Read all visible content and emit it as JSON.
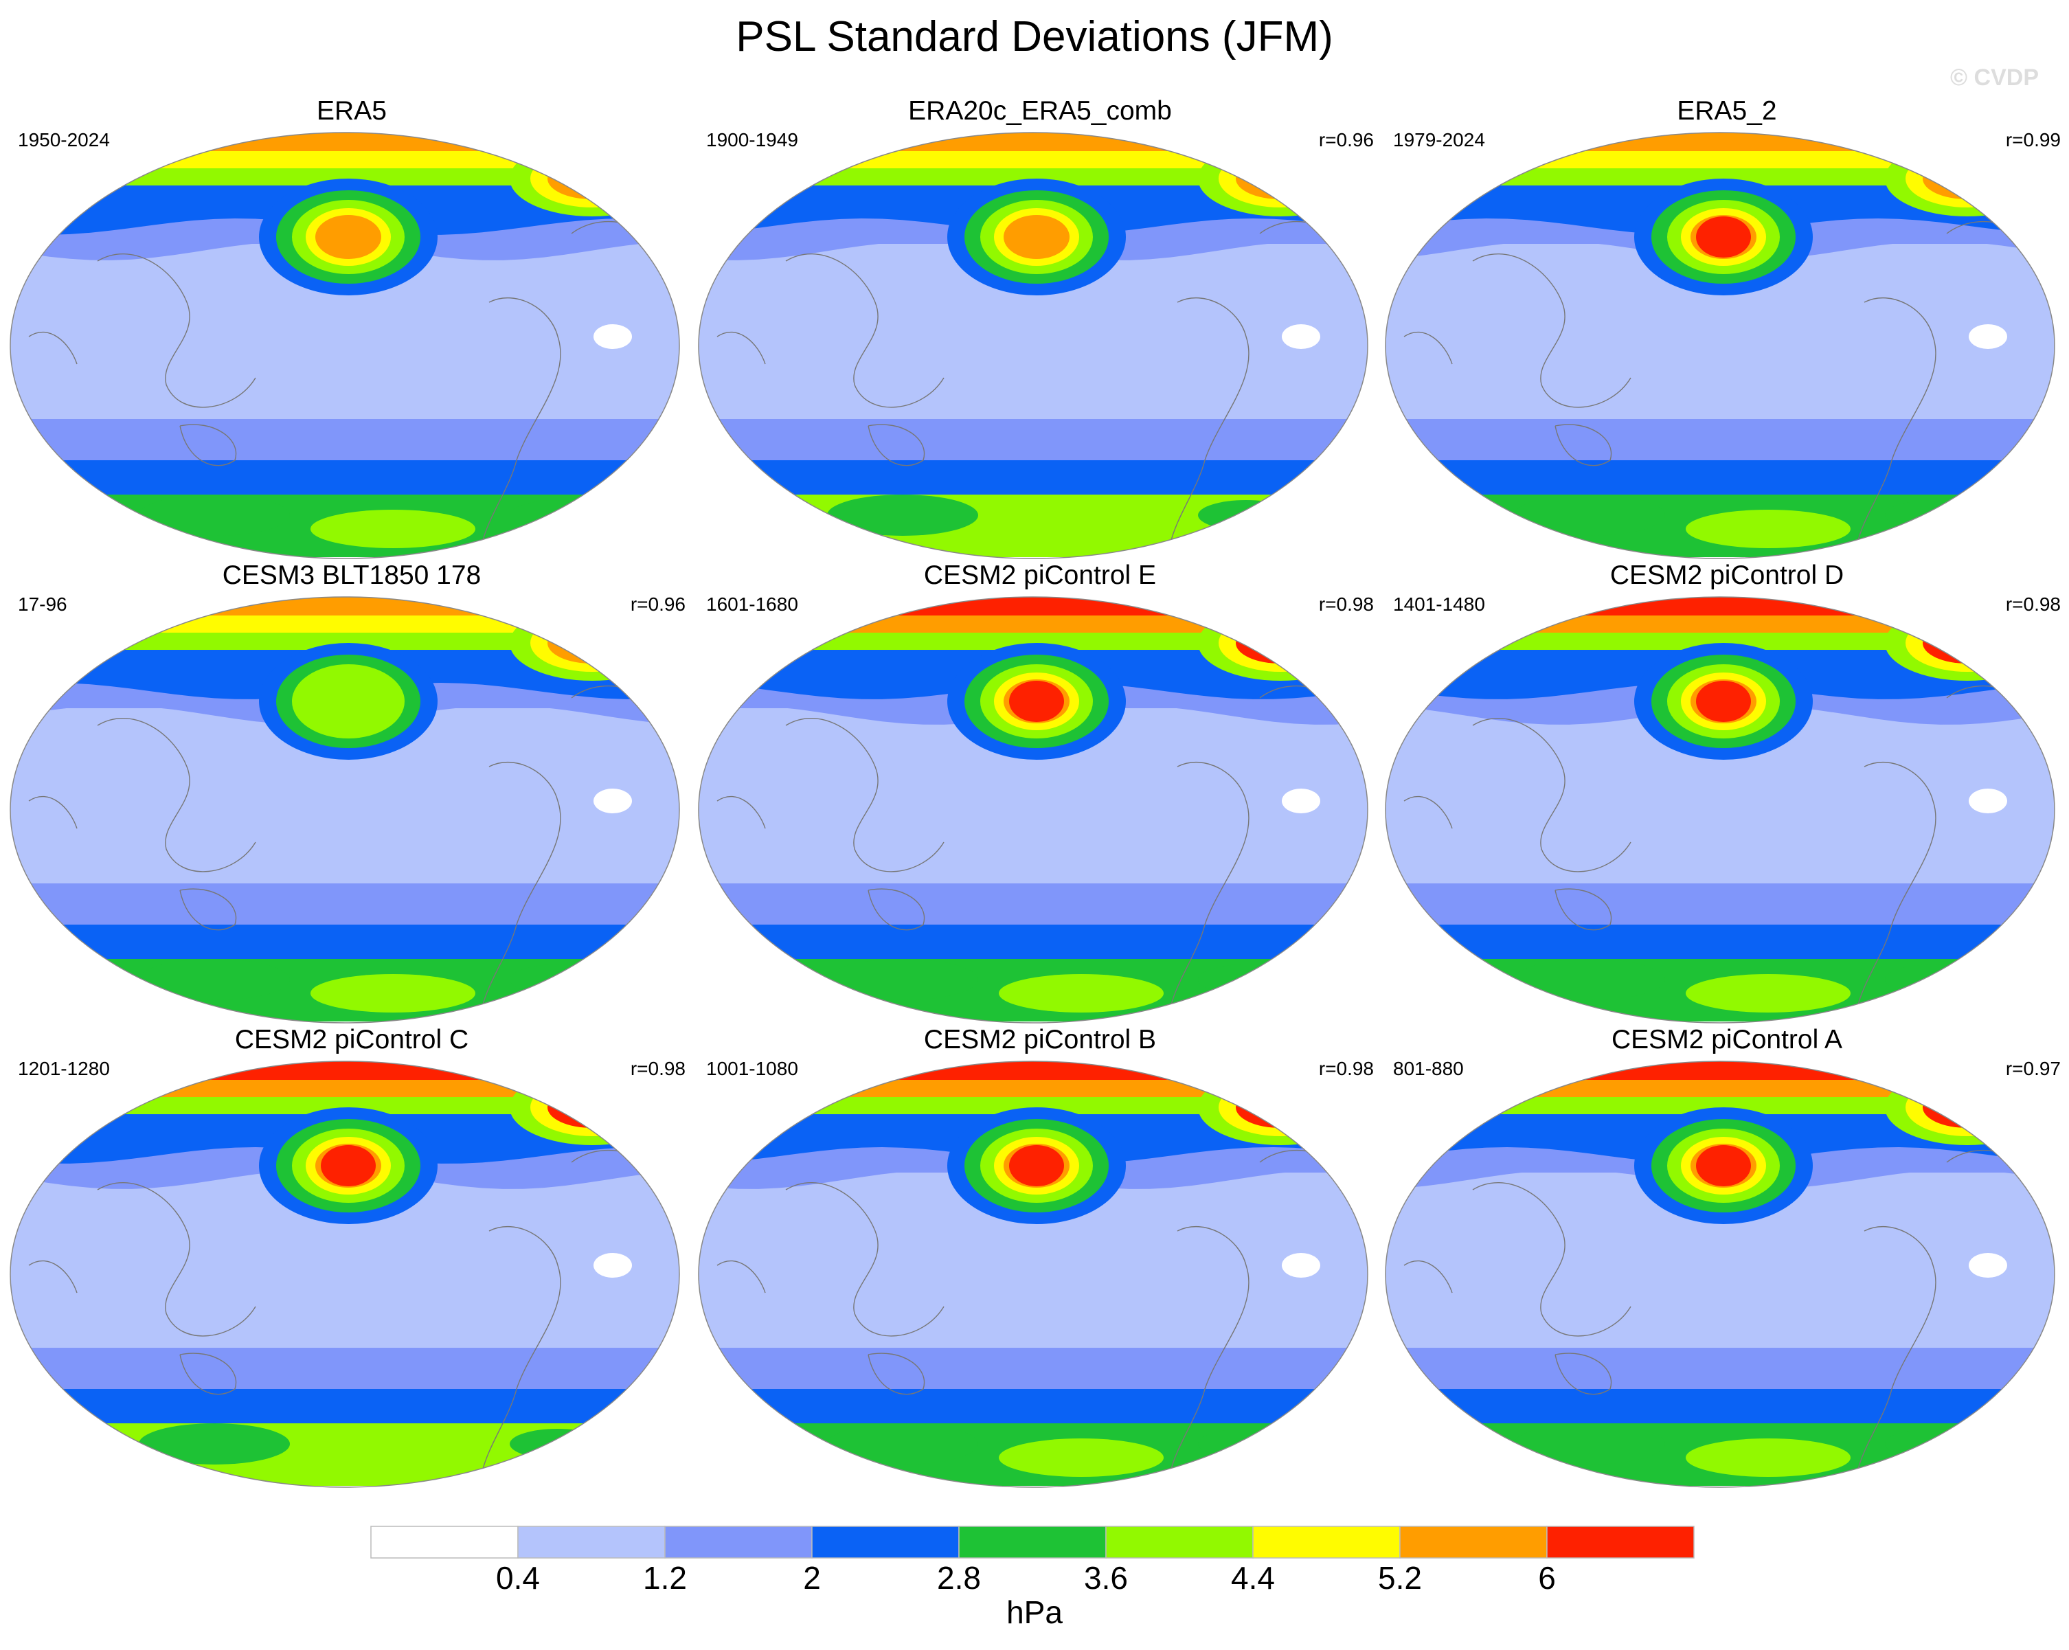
{
  "title": "PSL Standard Deviations (JFM)",
  "watermark": "© CVDP",
  "units": "hPa",
  "colorbar": {
    "levels": [
      "0.4",
      "1.2",
      "2",
      "2.8",
      "3.6",
      "4.4",
      "5.2",
      "6"
    ],
    "colors": [
      "#ffffff",
      "#b4c4fc",
      "#8096fa",
      "#0a62f5",
      "#1ec235",
      "#92f900",
      "#fffc00",
      "#ff9d00",
      "#fe2100"
    ]
  },
  "panels": [
    {
      "title": "ERA5",
      "years": "1950-2024",
      "r": ""
    },
    {
      "title": "ERA20c_ERA5_comb",
      "years": "1900-1949",
      "r": "r=0.96"
    },
    {
      "title": "ERA5_2",
      "years": "1979-2024",
      "r": "r=0.99"
    },
    {
      "title": "CESM3 BLT1850 178",
      "years": "17-96",
      "r": "r=0.96"
    },
    {
      "title": "CESM2 piControl E",
      "years": "1601-1680",
      "r": "r=0.98"
    },
    {
      "title": "CESM2 piControl D",
      "years": "1401-1480",
      "r": "r=0.98"
    },
    {
      "title": "CESM2 piControl C",
      "years": "1201-1280",
      "r": "r=0.98"
    },
    {
      "title": "CESM2 piControl B",
      "years": "1001-1080",
      "r": "r=0.98"
    },
    {
      "title": "CESM2 piControl A",
      "years": "801-880",
      "r": "r=0.97"
    }
  ],
  "chart_data": {
    "type": "heatmap",
    "title": "PSL Standard Deviations (JFM)",
    "variable": "PSL standard deviation",
    "season": "JFM",
    "units": "hPa",
    "contour_levels": [
      0.4,
      1.2,
      2,
      2.8,
      3.6,
      4.4,
      5.2,
      6
    ],
    "projection": "global map",
    "panels": [
      {
        "name": "ERA5",
        "period": "1950-2024",
        "pattern_correlation": null,
        "north_pacific_max_band": "5.2-6",
        "arctic_max_band": ">6"
      },
      {
        "name": "ERA20c_ERA5_comb",
        "period": "1900-1949",
        "pattern_correlation": 0.96,
        "north_pacific_max_band": "5.2-6",
        "arctic_max_band": "5.2-6"
      },
      {
        "name": "ERA5_2",
        "period": "1979-2024",
        "pattern_correlation": 0.99,
        "north_pacific_max_band": ">6",
        "arctic_max_band": ">6"
      },
      {
        "name": "CESM3 BLT1850 178",
        "period": "17-96",
        "pattern_correlation": 0.96,
        "north_pacific_max_band": "4.4-5.2",
        "arctic_max_band": "5.2-6"
      },
      {
        "name": "CESM2 piControl E",
        "period": "1601-1680",
        "pattern_correlation": 0.98,
        "north_pacific_max_band": ">6",
        "arctic_max_band": ">6"
      },
      {
        "name": "CESM2 piControl D",
        "period": "1401-1480",
        "pattern_correlation": 0.98,
        "north_pacific_max_band": ">6",
        "arctic_max_band": ">6"
      },
      {
        "name": "CESM2 piControl C",
        "period": "1201-1280",
        "pattern_correlation": 0.98,
        "north_pacific_max_band": ">6",
        "arctic_max_band": ">6"
      },
      {
        "name": "CESM2 piControl B",
        "period": "1001-1080",
        "pattern_correlation": 0.98,
        "north_pacific_max_band": ">6",
        "arctic_max_band": ">6"
      },
      {
        "name": "CESM2 piControl A",
        "period": "801-880",
        "pattern_correlation": 0.97,
        "north_pacific_max_band": ">6",
        "arctic_max_band": ">6"
      }
    ]
  }
}
